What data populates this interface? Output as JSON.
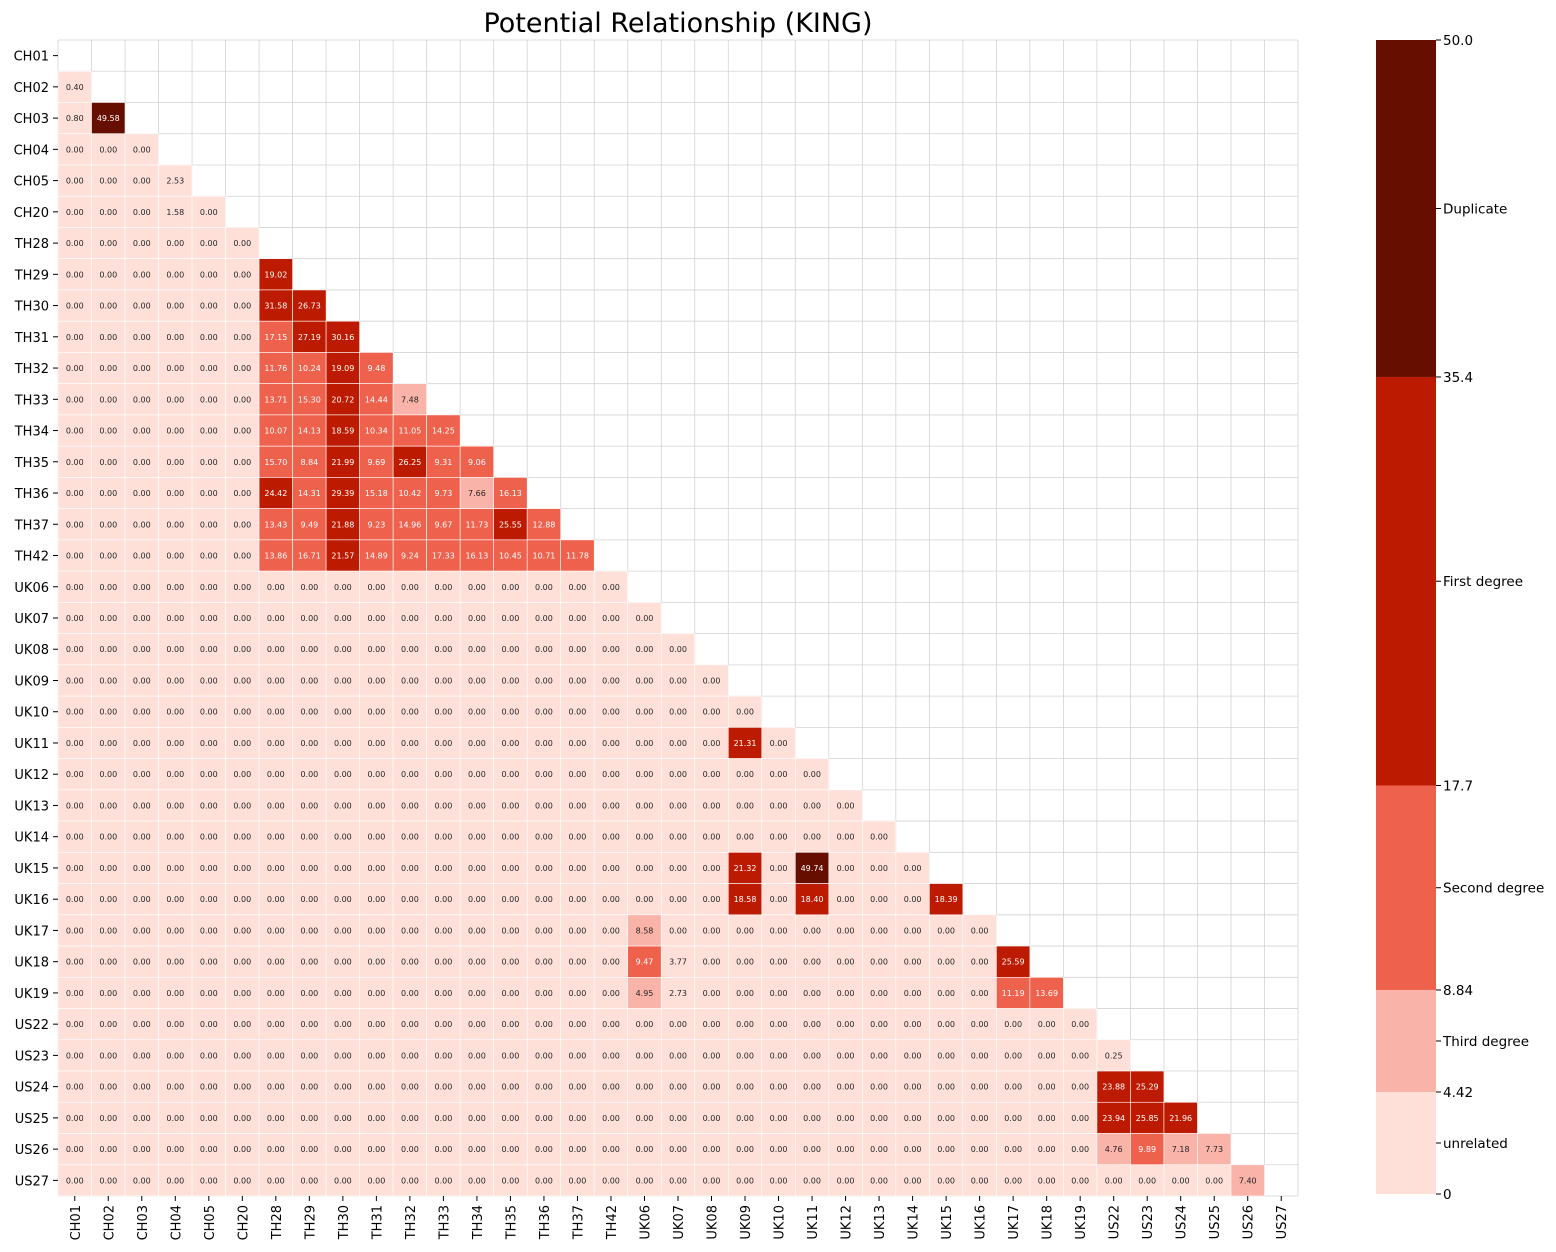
{
  "chart_data": {
    "type": "heatmap",
    "title": "Potential Relationship (KING)",
    "xlabel": "",
    "ylabel": "",
    "mask": "upper-triangle-including-diagonal",
    "labels": [
      "CH01",
      "CH02",
      "CH03",
      "CH04",
      "CH05",
      "CH20",
      "TH28",
      "TH29",
      "TH30",
      "TH31",
      "TH32",
      "TH33",
      "TH34",
      "TH35",
      "TH36",
      "TH37",
      "TH42",
      "UK06",
      "UK07",
      "UK08",
      "UK09",
      "UK10",
      "UK11",
      "UK12",
      "UK13",
      "UK14",
      "UK15",
      "UK16",
      "UK17",
      "UK18",
      "UK19",
      "US22",
      "US23",
      "US24",
      "US25",
      "US26",
      "US27"
    ],
    "value_format": "2 decimals",
    "lower_triangle_values": [
      [],
      [
        0.4
      ],
      [
        0.8,
        49.58
      ],
      [
        0.0,
        0.0,
        0.0
      ],
      [
        0.0,
        0.0,
        0.0,
        2.53
      ],
      [
        0.0,
        0.0,
        0.0,
        1.58,
        0.0
      ],
      [
        0.0,
        0.0,
        0.0,
        0.0,
        0.0,
        0.0
      ],
      [
        0.0,
        0.0,
        0.0,
        0.0,
        0.0,
        0.0,
        19.02
      ],
      [
        0.0,
        0.0,
        0.0,
        0.0,
        0.0,
        0.0,
        31.58,
        26.73
      ],
      [
        0.0,
        0.0,
        0.0,
        0.0,
        0.0,
        0.0,
        17.15,
        27.19,
        30.16
      ],
      [
        0.0,
        0.0,
        0.0,
        0.0,
        0.0,
        0.0,
        11.76,
        10.24,
        19.09,
        9.48
      ],
      [
        0.0,
        0.0,
        0.0,
        0.0,
        0.0,
        0.0,
        13.71,
        15.3,
        20.72,
        14.44,
        7.48
      ],
      [
        0.0,
        0.0,
        0.0,
        0.0,
        0.0,
        0.0,
        10.07,
        14.13,
        18.59,
        10.34,
        11.05,
        14.25
      ],
      [
        0.0,
        0.0,
        0.0,
        0.0,
        0.0,
        0.0,
        15.7,
        8.84,
        21.99,
        9.69,
        26.25,
        9.31,
        9.06
      ],
      [
        0.0,
        0.0,
        0.0,
        0.0,
        0.0,
        0.0,
        24.42,
        14.31,
        29.39,
        15.18,
        10.42,
        9.73,
        7.66,
        16.13
      ],
      [
        0.0,
        0.0,
        0.0,
        0.0,
        0.0,
        0.0,
        13.43,
        9.49,
        21.88,
        9.23,
        14.96,
        9.67,
        11.73,
        25.55,
        12.88
      ],
      [
        0.0,
        0.0,
        0.0,
        0.0,
        0.0,
        0.0,
        13.86,
        16.71,
        21.57,
        14.89,
        9.24,
        17.33,
        16.13,
        10.45,
        10.71,
        11.78
      ],
      [
        0.0,
        0.0,
        0.0,
        0.0,
        0.0,
        0.0,
        0.0,
        0.0,
        0.0,
        0.0,
        0.0,
        0.0,
        0.0,
        0.0,
        0.0,
        0.0,
        0.0
      ],
      [
        0.0,
        0.0,
        0.0,
        0.0,
        0.0,
        0.0,
        0.0,
        0.0,
        0.0,
        0.0,
        0.0,
        0.0,
        0.0,
        0.0,
        0.0,
        0.0,
        0.0,
        0.0
      ],
      [
        0.0,
        0.0,
        0.0,
        0.0,
        0.0,
        0.0,
        0.0,
        0.0,
        0.0,
        0.0,
        0.0,
        0.0,
        0.0,
        0.0,
        0.0,
        0.0,
        0.0,
        0.0,
        0.0
      ],
      [
        0.0,
        0.0,
        0.0,
        0.0,
        0.0,
        0.0,
        0.0,
        0.0,
        0.0,
        0.0,
        0.0,
        0.0,
        0.0,
        0.0,
        0.0,
        0.0,
        0.0,
        0.0,
        0.0,
        0.0
      ],
      [
        0.0,
        0.0,
        0.0,
        0.0,
        0.0,
        0.0,
        0.0,
        0.0,
        0.0,
        0.0,
        0.0,
        0.0,
        0.0,
        0.0,
        0.0,
        0.0,
        0.0,
        0.0,
        0.0,
        0.0,
        0.0
      ],
      [
        0.0,
        0.0,
        0.0,
        0.0,
        0.0,
        0.0,
        0.0,
        0.0,
        0.0,
        0.0,
        0.0,
        0.0,
        0.0,
        0.0,
        0.0,
        0.0,
        0.0,
        0.0,
        0.0,
        0.0,
        21.31,
        0.0
      ],
      [
        0.0,
        0.0,
        0.0,
        0.0,
        0.0,
        0.0,
        0.0,
        0.0,
        0.0,
        0.0,
        0.0,
        0.0,
        0.0,
        0.0,
        0.0,
        0.0,
        0.0,
        0.0,
        0.0,
        0.0,
        0.0,
        0.0,
        0.0
      ],
      [
        0.0,
        0.0,
        0.0,
        0.0,
        0.0,
        0.0,
        0.0,
        0.0,
        0.0,
        0.0,
        0.0,
        0.0,
        0.0,
        0.0,
        0.0,
        0.0,
        0.0,
        0.0,
        0.0,
        0.0,
        0.0,
        0.0,
        0.0,
        0.0
      ],
      [
        0.0,
        0.0,
        0.0,
        0.0,
        0.0,
        0.0,
        0.0,
        0.0,
        0.0,
        0.0,
        0.0,
        0.0,
        0.0,
        0.0,
        0.0,
        0.0,
        0.0,
        0.0,
        0.0,
        0.0,
        0.0,
        0.0,
        0.0,
        0.0,
        0.0
      ],
      [
        0.0,
        0.0,
        0.0,
        0.0,
        0.0,
        0.0,
        0.0,
        0.0,
        0.0,
        0.0,
        0.0,
        0.0,
        0.0,
        0.0,
        0.0,
        0.0,
        0.0,
        0.0,
        0.0,
        0.0,
        21.32,
        0.0,
        49.74,
        0.0,
        0.0,
        0.0
      ],
      [
        0.0,
        0.0,
        0.0,
        0.0,
        0.0,
        0.0,
        0.0,
        0.0,
        0.0,
        0.0,
        0.0,
        0.0,
        0.0,
        0.0,
        0.0,
        0.0,
        0.0,
        0.0,
        0.0,
        0.0,
        18.58,
        0.0,
        18.4,
        0.0,
        0.0,
        0.0,
        18.39
      ],
      [
        0.0,
        0.0,
        0.0,
        0.0,
        0.0,
        0.0,
        0.0,
        0.0,
        0.0,
        0.0,
        0.0,
        0.0,
        0.0,
        0.0,
        0.0,
        0.0,
        0.0,
        8.58,
        0.0,
        0.0,
        0.0,
        0.0,
        0.0,
        0.0,
        0.0,
        0.0,
        0.0,
        0.0
      ],
      [
        0.0,
        0.0,
        0.0,
        0.0,
        0.0,
        0.0,
        0.0,
        0.0,
        0.0,
        0.0,
        0.0,
        0.0,
        0.0,
        0.0,
        0.0,
        0.0,
        0.0,
        9.47,
        3.77,
        0.0,
        0.0,
        0.0,
        0.0,
        0.0,
        0.0,
        0.0,
        0.0,
        0.0,
        25.59
      ],
      [
        0.0,
        0.0,
        0.0,
        0.0,
        0.0,
        0.0,
        0.0,
        0.0,
        0.0,
        0.0,
        0.0,
        0.0,
        0.0,
        0.0,
        0.0,
        0.0,
        0.0,
        4.95,
        2.73,
        0.0,
        0.0,
        0.0,
        0.0,
        0.0,
        0.0,
        0.0,
        0.0,
        0.0,
        11.19,
        13.69
      ],
      [
        0.0,
        0.0,
        0.0,
        0.0,
        0.0,
        0.0,
        0.0,
        0.0,
        0.0,
        0.0,
        0.0,
        0.0,
        0.0,
        0.0,
        0.0,
        0.0,
        0.0,
        0.0,
        0.0,
        0.0,
        0.0,
        0.0,
        0.0,
        0.0,
        0.0,
        0.0,
        0.0,
        0.0,
        0.0,
        0.0,
        0.0
      ],
      [
        0.0,
        0.0,
        0.0,
        0.0,
        0.0,
        0.0,
        0.0,
        0.0,
        0.0,
        0.0,
        0.0,
        0.0,
        0.0,
        0.0,
        0.0,
        0.0,
        0.0,
        0.0,
        0.0,
        0.0,
        0.0,
        0.0,
        0.0,
        0.0,
        0.0,
        0.0,
        0.0,
        0.0,
        0.0,
        0.0,
        0.0,
        0.25
      ],
      [
        0.0,
        0.0,
        0.0,
        0.0,
        0.0,
        0.0,
        0.0,
        0.0,
        0.0,
        0.0,
        0.0,
        0.0,
        0.0,
        0.0,
        0.0,
        0.0,
        0.0,
        0.0,
        0.0,
        0.0,
        0.0,
        0.0,
        0.0,
        0.0,
        0.0,
        0.0,
        0.0,
        0.0,
        0.0,
        0.0,
        0.0,
        23.88,
        25.29
      ],
      [
        0.0,
        0.0,
        0.0,
        0.0,
        0.0,
        0.0,
        0.0,
        0.0,
        0.0,
        0.0,
        0.0,
        0.0,
        0.0,
        0.0,
        0.0,
        0.0,
        0.0,
        0.0,
        0.0,
        0.0,
        0.0,
        0.0,
        0.0,
        0.0,
        0.0,
        0.0,
        0.0,
        0.0,
        0.0,
        0.0,
        0.0,
        23.94,
        25.85,
        21.96
      ],
      [
        0.0,
        0.0,
        0.0,
        0.0,
        0.0,
        0.0,
        0.0,
        0.0,
        0.0,
        0.0,
        0.0,
        0.0,
        0.0,
        0.0,
        0.0,
        0.0,
        0.0,
        0.0,
        0.0,
        0.0,
        0.0,
        0.0,
        0.0,
        0.0,
        0.0,
        0.0,
        0.0,
        0.0,
        0.0,
        0.0,
        0.0,
        4.76,
        9.89,
        7.18,
        7.73
      ],
      [
        0.0,
        0.0,
        0.0,
        0.0,
        0.0,
        0.0,
        0.0,
        0.0,
        0.0,
        0.0,
        0.0,
        0.0,
        0.0,
        0.0,
        0.0,
        0.0,
        0.0,
        0.0,
        0.0,
        0.0,
        0.0,
        0.0,
        0.0,
        0.0,
        0.0,
        0.0,
        0.0,
        0.0,
        0.0,
        0.0,
        0.0,
        0.0,
        0.0,
        0.0,
        0.0,
        7.4
      ]
    ],
    "colorbar": {
      "range": [
        0,
        50.0
      ],
      "bins": [
        {
          "from": 0,
          "to": 4.42,
          "color": "#fee0d9",
          "label": "unrelated"
        },
        {
          "from": 4.42,
          "to": 8.84,
          "color": "#f9b3a8",
          "label": "Third degree"
        },
        {
          "from": 8.84,
          "to": 17.7,
          "color": "#ee614d",
          "label": "Second degree"
        },
        {
          "from": 17.7,
          "to": 35.4,
          "color": "#bd1b01",
          "label": "First degree"
        },
        {
          "from": 35.4,
          "to": 50.0,
          "color": "#660f01",
          "label": "Duplicate"
        }
      ],
      "tick_labels": [
        "0",
        "4.42",
        "8.84",
        "17.7",
        "35.4",
        "50.0"
      ]
    },
    "grid_color": "#d3d3d3"
  }
}
